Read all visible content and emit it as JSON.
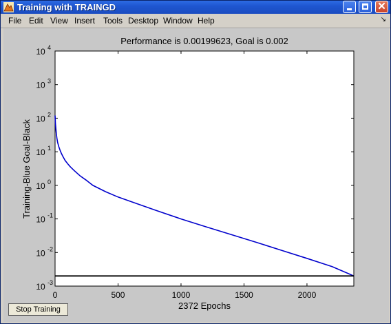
{
  "window": {
    "title": "Training with TRAINGD",
    "menu": [
      "File",
      "Edit",
      "View",
      "Insert",
      "Tools",
      "Desktop",
      "Window",
      "Help"
    ],
    "dock_glyph": "↘"
  },
  "buttons": {
    "stop_training": "Stop Training"
  },
  "chart_data": {
    "type": "line",
    "title": "Performance is 0.00199623, Goal is 0.002",
    "xlabel": "2372 Epochs",
    "ylabel": "Training-Blue  Goal-Black",
    "xlim": [
      0,
      2372
    ],
    "ylim": [
      0.001,
      10000
    ],
    "yscale": "log",
    "x_ticks": [
      0,
      500,
      1000,
      1500,
      2000
    ],
    "y_ticks": [
      {
        "base": "10",
        "exp": "4"
      },
      {
        "base": "10",
        "exp": "3"
      },
      {
        "base": "10",
        "exp": "2"
      },
      {
        "base": "10",
        "exp": "1"
      },
      {
        "base": "10",
        "exp": "0"
      },
      {
        "base": "10",
        "exp": "-1"
      },
      {
        "base": "10",
        "exp": "-2"
      },
      {
        "base": "10",
        "exp": "-3"
      }
    ],
    "grid": false,
    "series": [
      {
        "color": "#0000cc",
        "x": [
          0,
          1,
          3,
          6,
          10,
          15,
          20,
          30,
          40,
          50,
          60,
          80,
          100,
          120,
          150,
          200,
          250,
          300,
          400,
          500,
          600,
          800,
          1000,
          1200,
          1400,
          1600,
          1800,
          2000,
          2200,
          2372
        ],
        "y": [
          120,
          100,
          70,
          50,
          35,
          25,
          19,
          14,
          11,
          9,
          7.5,
          5.5,
          4.4,
          3.6,
          2.8,
          1.9,
          1.4,
          1.0,
          0.65,
          0.45,
          0.33,
          0.18,
          0.1,
          0.058,
          0.034,
          0.02,
          0.0115,
          0.0067,
          0.0038,
          0.002
        ]
      },
      {
        "color": "#000000",
        "x": [
          0,
          2372
        ],
        "y": [
          0.002,
          0.002
        ]
      }
    ]
  }
}
